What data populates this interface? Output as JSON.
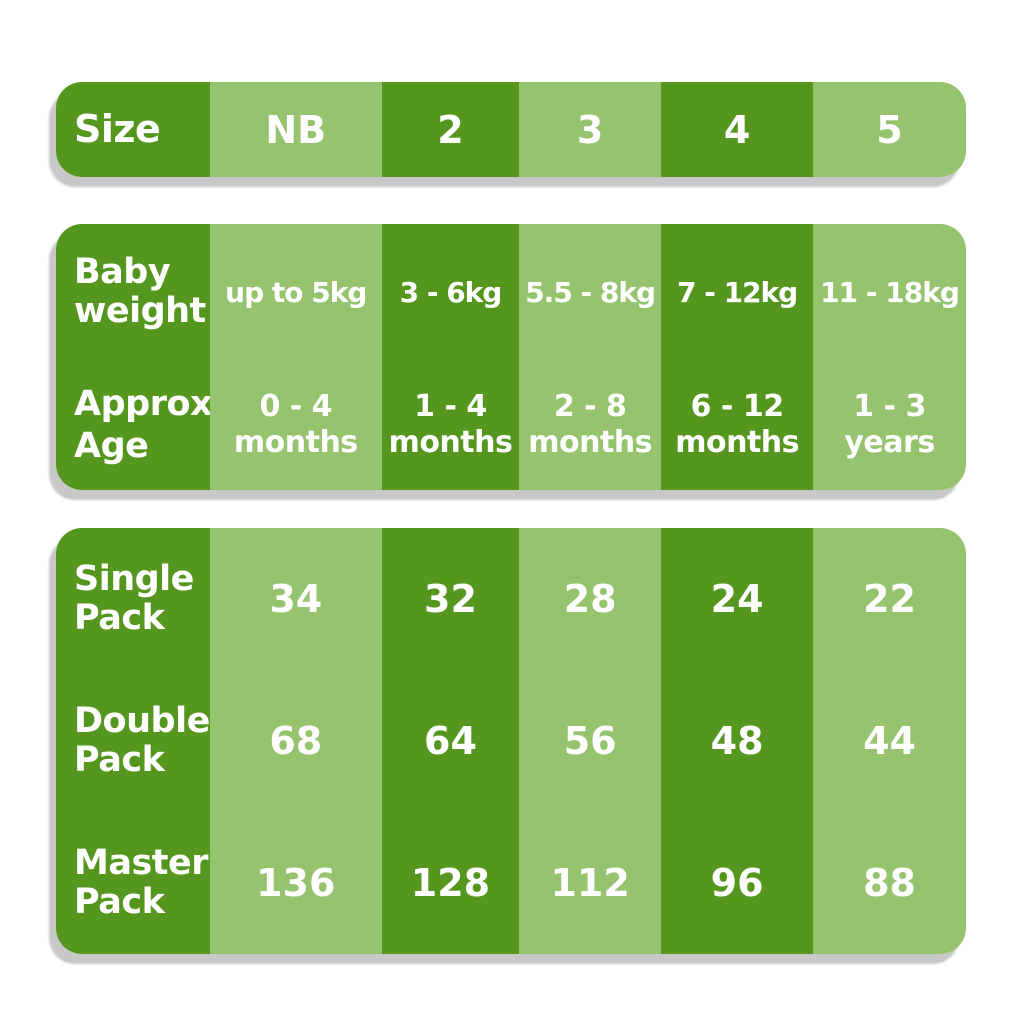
{
  "theme": {
    "column_dark_green": "#55961e",
    "column_light_green": "#96c36e",
    "shadow_gray": "#c8c8c8",
    "background": "#ffffff",
    "text_color": "#ffffff"
  },
  "table": {
    "size": {
      "label": "Size",
      "values": [
        "NB",
        "2",
        "3",
        "4",
        "5"
      ]
    },
    "weight": {
      "label": "Baby\nweight",
      "values": [
        "up to 5kg",
        "3 - 6kg",
        "5.5 - 8kg",
        "7 - 12kg",
        "11 - 18kg"
      ]
    },
    "age": {
      "label": "Approx\nAge",
      "values": [
        "0 - 4\nmonths",
        "1 - 4\nmonths",
        "2 - 8\nmonths",
        "6 - 12\nmonths",
        "1 - 3\nyears"
      ]
    },
    "single": {
      "label": "Single\nPack",
      "values": [
        "34",
        "32",
        "28",
        "24",
        "22"
      ]
    },
    "double": {
      "label": "Double\nPack",
      "values": [
        "68",
        "64",
        "56",
        "48",
        "44"
      ]
    },
    "master": {
      "label": "Master\nPack",
      "values": [
        "136",
        "128",
        "112",
        "96",
        "88"
      ]
    }
  },
  "chart_data": {
    "type": "table",
    "columns": [
      "Size",
      "NB",
      "2",
      "3",
      "4",
      "5"
    ],
    "rows": [
      [
        "Baby weight",
        "up to 5kg",
        "3 - 6kg",
        "5.5 - 8kg",
        "7 - 12kg",
        "11 - 18kg"
      ],
      [
        "Approx Age",
        "0 - 4 months",
        "1 - 4 months",
        "2 - 8 months",
        "6 - 12 months",
        "1 - 3 years"
      ],
      [
        "Single Pack",
        34,
        32,
        28,
        24,
        22
      ],
      [
        "Double Pack",
        68,
        64,
        56,
        48,
        44
      ],
      [
        "Master Pack",
        136,
        128,
        112,
        96,
        88
      ]
    ],
    "title": "",
    "notes": "Baby nappy size chart: columns alternate dark/light green; white bold text"
  }
}
